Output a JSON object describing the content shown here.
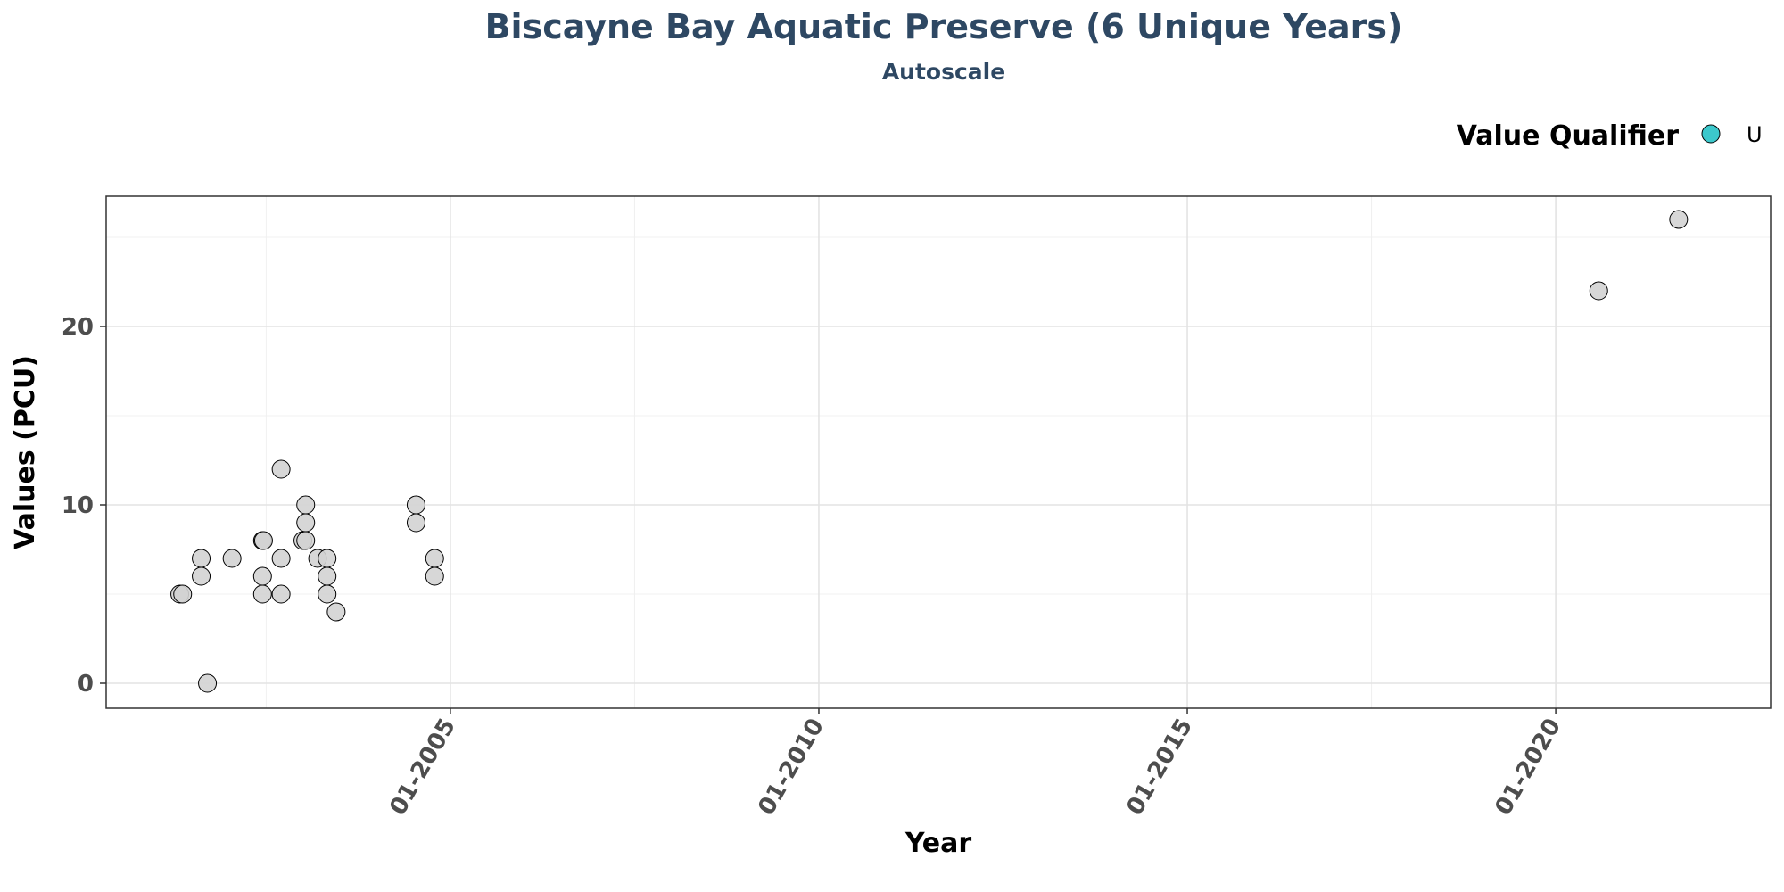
{
  "chart_data": {
    "type": "scatter",
    "title": "Biscayne Bay Aquatic Preserve (6 Unique Years)",
    "subtitle": "Autoscale",
    "xlabel": "Year",
    "ylabel": "Values (PCU)",
    "x_axis": {
      "kind": "date",
      "range": [
        "2000-05-01",
        "2022-12-01"
      ],
      "ticks": [
        "2005-01-01",
        "2010-01-01",
        "2015-01-01",
        "2020-01-01"
      ],
      "tick_labels": [
        "01-2005",
        "01-2010",
        "01-2015",
        "01-2020"
      ]
    },
    "y_axis": {
      "range": [
        -1.4,
        27.3
      ],
      "ticks": [
        0,
        10,
        20
      ],
      "tick_labels": [
        "0",
        "10",
        "20"
      ]
    },
    "grid": true,
    "legend": {
      "title": "Value Qualifier",
      "position": "top-right",
      "items": [
        {
          "label": "U",
          "color": "#3cc8cc"
        }
      ]
    },
    "point_color": "#d3d3d3",
    "points": [
      {
        "x": "2001-05-01",
        "y": 5
      },
      {
        "x": "2001-05-15",
        "y": 5
      },
      {
        "x": "2001-08-15",
        "y": 7
      },
      {
        "x": "2001-08-15",
        "y": 6
      },
      {
        "x": "2001-09-15",
        "y": 0
      },
      {
        "x": "2002-01-15",
        "y": 7
      },
      {
        "x": "2002-06-15",
        "y": 8
      },
      {
        "x": "2002-06-20",
        "y": 8
      },
      {
        "x": "2002-06-15",
        "y": 6
      },
      {
        "x": "2002-06-15",
        "y": 5
      },
      {
        "x": "2002-09-15",
        "y": 12
      },
      {
        "x": "2002-09-15",
        "y": 7
      },
      {
        "x": "2002-09-15",
        "y": 5
      },
      {
        "x": "2003-01-15",
        "y": 10
      },
      {
        "x": "2003-01-15",
        "y": 9
      },
      {
        "x": "2003-01-01",
        "y": 8
      },
      {
        "x": "2003-01-15",
        "y": 8
      },
      {
        "x": "2003-03-15",
        "y": 7
      },
      {
        "x": "2003-05-01",
        "y": 7
      },
      {
        "x": "2003-05-01",
        "y": 6
      },
      {
        "x": "2003-05-01",
        "y": 5
      },
      {
        "x": "2003-06-15",
        "y": 4
      },
      {
        "x": "2004-07-15",
        "y": 10
      },
      {
        "x": "2004-07-15",
        "y": 9
      },
      {
        "x": "2004-10-15",
        "y": 7
      },
      {
        "x": "2004-10-15",
        "y": 6
      },
      {
        "x": "2020-08-01",
        "y": 22
      },
      {
        "x": "2021-09-01",
        "y": 26
      }
    ]
  }
}
